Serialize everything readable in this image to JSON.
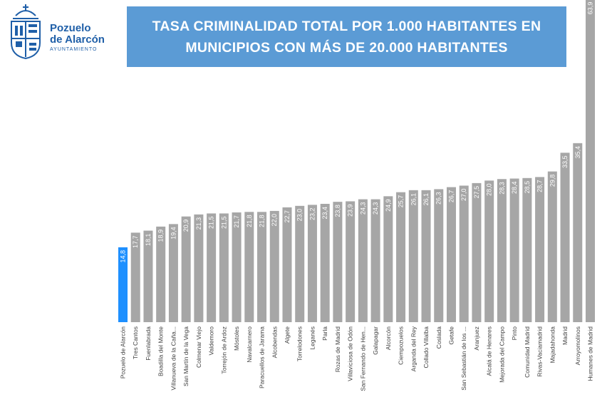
{
  "logo": {
    "name_line1": "Pozuelo",
    "name_line2": "de Alarcón",
    "subtitle": "AYUNTAMIENTO"
  },
  "header": {
    "title_line1": "TASA CRIMINALIDAD TOTAL POR 1.000 HABITANTES EN",
    "title_line2": "MUNICIPIOS CON MÁS DE 20.000 HABITANTES"
  },
  "colors": {
    "bar": "#a6a6a6",
    "highlight": "#1e90ff",
    "title_bg": "#5b9bd5",
    "brand": "#1f5fa8"
  },
  "chart_data": {
    "type": "bar",
    "title": "TASA CRIMINALIDAD TOTAL POR 1.000 HABITANTES EN MUNICIPIOS CON MÁS DE 20.000 HABITANTES",
    "xlabel": "",
    "ylabel": "",
    "grid": false,
    "highlight_category": "Pozuelo de Alarcón",
    "categories": [
      "Pozuelo de Alarcón",
      "Tres Cantos",
      "Fuenlabrada",
      "Boadilla del Monte",
      "Villanueva de la Caña...",
      "San Martín de la Vega",
      "Colmenar Viejo",
      "Valdemoro",
      "Torrejón de Ardoz",
      "Móstoles",
      "Navalcarnero",
      "Paracuellos de Jarama",
      "Alcobendas",
      "Algete",
      "Torrelodones",
      "Leganés",
      "Parla",
      "Rozas de Madrid",
      "Villaviciosa de Odón",
      "San Fernando de Hen...",
      "Galapagar",
      "Alcorcón",
      "Ciempozuelos",
      "Arganda del Rey",
      "Collado Villalba",
      "Coslada",
      "Getafe",
      "San Sebastián de los ...",
      "Aranjuez",
      "Alcalá de Henares",
      "Mejorada del Campo",
      "Pinto",
      "Comunidad Madrid",
      "Rivas-Vaciamadrid",
      "Majadahonda",
      "Madrid",
      "Arroyomolinos",
      "Humanes de Madrid"
    ],
    "values": [
      14.8,
      17.7,
      18.1,
      18.9,
      19.4,
      20.9,
      21.3,
      21.5,
      21.5,
      21.7,
      21.8,
      21.8,
      22.0,
      22.7,
      23.0,
      23.2,
      23.4,
      23.8,
      23.9,
      24.3,
      24.3,
      24.9,
      25.7,
      26.1,
      26.1,
      26.3,
      26.7,
      27.0,
      27.5,
      28.0,
      28.3,
      28.4,
      28.5,
      28.7,
      29.8,
      33.5,
      35.4,
      63.9
    ],
    "labels": [
      "14,8",
      "17,7",
      "18,1",
      "18,9",
      "19,4",
      "20,9",
      "21,3",
      "21,5",
      "21,5",
      "21,7",
      "21,8",
      "21,8",
      "22,0",
      "22,7",
      "23,0",
      "23,2",
      "23,4",
      "23,8",
      "23,9",
      "24,3",
      "24,3",
      "24,9",
      "25,7",
      "26,1",
      "26,1",
      "26,3",
      "26,7",
      "27,0",
      "27,5",
      "28,0",
      "28,3",
      "28,4",
      "28,5",
      "28,7",
      "29,8",
      "33,5",
      "35,4",
      "63,9"
    ]
  }
}
